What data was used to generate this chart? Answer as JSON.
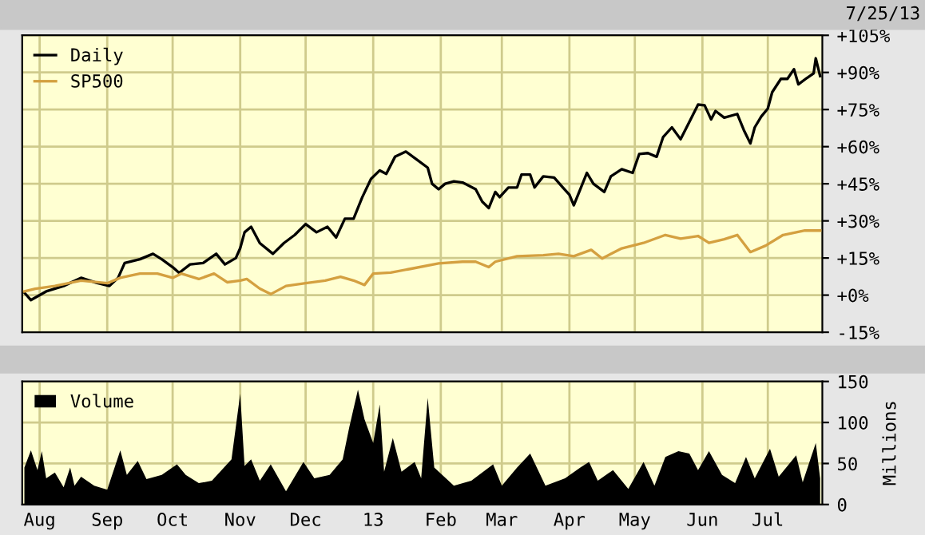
{
  "chart_data": [
    {
      "type": "line",
      "annotations": [
        "7/25/13"
      ],
      "grid": true,
      "legend": "top left",
      "tick_labels": "y",
      "xlim": [
        "2012-07-24",
        "2013-07-26"
      ],
      "xticks": [
        {
          "value": "2012-08-01",
          "label": null
        },
        {
          "value": "2012-09-01",
          "label": null
        },
        {
          "value": "2012-10-01",
          "label": null
        },
        {
          "value": "2012-11-01",
          "label": null
        },
        {
          "value": "2012-12-01",
          "label": null
        },
        {
          "value": "2013-01-01",
          "label": null
        },
        {
          "value": "2013-02-01",
          "label": null
        },
        {
          "value": "2013-03-01",
          "label": null
        },
        {
          "value": "2013-04-01",
          "label": null
        },
        {
          "value": "2013-05-01",
          "label": null
        },
        {
          "value": "2013-06-01",
          "label": null
        },
        {
          "value": "2013-07-01",
          "label": null
        }
      ],
      "ylim": [
        -15,
        105
      ],
      "yticks": [
        {
          "value": -15,
          "label": "-15%"
        },
        {
          "value": 0,
          "label": "+0%"
        },
        {
          "value": 15,
          "label": "+15%"
        },
        {
          "value": 30,
          "label": "+30%"
        },
        {
          "value": 45,
          "label": "+45%"
        },
        {
          "value": 60,
          "label": "+60%"
        },
        {
          "value": 75,
          "label": "+75%"
        },
        {
          "value": 90,
          "label": "+90%"
        },
        {
          "value": 105,
          "label": "+105%"
        }
      ],
      "series": [
        {
          "name": "Daily",
          "color": "#000000",
          "x": [
            "2012-07-25",
            "2012-07-28",
            "2012-08-04",
            "2012-08-12",
            "2012-08-20",
            "2012-08-27",
            "2012-09-02",
            "2012-09-06",
            "2012-09-09",
            "2012-09-16",
            "2012-09-22",
            "2012-09-26",
            "2012-10-01",
            "2012-10-04",
            "2012-10-09",
            "2012-10-15",
            "2012-10-21",
            "2012-10-25",
            "2012-10-30",
            "2012-11-01",
            "2012-11-03",
            "2012-11-06",
            "2012-11-10",
            "2012-11-16",
            "2012-11-21",
            "2012-11-26",
            "2012-12-01",
            "2012-12-06",
            "2012-12-11",
            "2012-12-15",
            "2012-12-19",
            "2012-12-23",
            "2012-12-27",
            "2012-12-31",
            "2013-01-04",
            "2013-01-07",
            "2013-01-11",
            "2013-01-16",
            "2013-01-21",
            "2013-01-26",
            "2013-01-28",
            "2013-01-31",
            "2013-02-03",
            "2013-02-07",
            "2013-02-11",
            "2013-02-17",
            "2013-02-20",
            "2013-02-23",
            "2013-02-26",
            "2013-02-28",
            "2013-03-04",
            "2013-03-08",
            "2013-03-10",
            "2013-03-14",
            "2013-03-16",
            "2013-03-20",
            "2013-03-25",
            "2013-03-29",
            "2013-04-01",
            "2013-04-03",
            "2013-04-06",
            "2013-04-09",
            "2013-04-12",
            "2013-04-17",
            "2013-04-20",
            "2013-04-25",
            "2013-04-30",
            "2013-05-03",
            "2013-05-07",
            "2013-05-11",
            "2013-05-14",
            "2013-05-18",
            "2013-05-22",
            "2013-05-26",
            "2013-05-30",
            "2013-06-02",
            "2013-06-05",
            "2013-06-07",
            "2013-06-11",
            "2013-06-17",
            "2013-06-20",
            "2013-06-23",
            "2013-06-25",
            "2013-06-28",
            "2013-07-01",
            "2013-07-03",
            "2013-07-07",
            "2013-07-10",
            "2013-07-13",
            "2013-07-15",
            "2013-07-19",
            "2013-07-22",
            "2013-07-23",
            "2013-07-25"
          ],
          "values": [
            1,
            -2,
            1.5,
            3.7,
            7,
            5,
            3.7,
            7,
            13,
            14.5,
            16.7,
            14.5,
            11.3,
            9,
            12.4,
            13,
            16.7,
            12.4,
            15,
            19,
            25.4,
            27.6,
            21,
            16.7,
            21,
            24.3,
            28.7,
            25.4,
            27.6,
            23.3,
            30.9,
            30.9,
            39.6,
            47,
            50.4,
            49,
            55.9,
            58,
            54.8,
            51.5,
            45,
            42.8,
            45,
            46,
            45.5,
            42.8,
            37.8,
            35.2,
            41.7,
            39.6,
            43.5,
            43.5,
            48.7,
            48.7,
            43.5,
            48,
            47.5,
            43.5,
            40.6,
            36.3,
            42.8,
            49.4,
            45,
            41.7,
            48,
            50.9,
            49.4,
            57,
            57.4,
            55.9,
            63.9,
            67.8,
            63,
            70,
            77,
            76.7,
            71,
            74.4,
            71.7,
            73.2,
            66.7,
            61.3,
            67.8,
            72.2,
            75.4,
            82,
            87.4,
            87.4,
            91.3,
            85.2,
            87.8,
            89.6,
            95.7,
            88.5
          ]
        },
        {
          "name": "SP500",
          "color": "#d4a040",
          "x": [
            "2012-07-25",
            "2012-07-30",
            "2012-08-08",
            "2012-08-20",
            "2012-09-01",
            "2012-09-07",
            "2012-09-16",
            "2012-09-24",
            "2012-10-01",
            "2012-10-05",
            "2012-10-13",
            "2012-10-20",
            "2012-10-26",
            "2012-11-01",
            "2012-11-04",
            "2012-11-10",
            "2012-11-15",
            "2012-11-22",
            "2012-12-01",
            "2012-12-10",
            "2012-12-17",
            "2012-12-23",
            "2012-12-28",
            "2013-01-01",
            "2013-01-09",
            "2013-01-18",
            "2013-01-31",
            "2013-02-11",
            "2013-02-17",
            "2013-02-23",
            "2013-02-26",
            "2013-03-08",
            "2013-03-20",
            "2013-03-27",
            "2013-04-03",
            "2013-04-11",
            "2013-04-16",
            "2013-04-25",
            "2013-05-05",
            "2013-05-15",
            "2013-05-22",
            "2013-05-30",
            "2013-06-04",
            "2013-06-11",
            "2013-06-17",
            "2013-06-23",
            "2013-06-30",
            "2013-07-08",
            "2013-07-18",
            "2013-07-25"
          ],
          "values": [
            1.5,
            2.6,
            3.7,
            5.9,
            4.8,
            7,
            8.7,
            8.7,
            7,
            8.7,
            6.5,
            8.7,
            5.2,
            5.9,
            6.5,
            2.6,
            0.4,
            3.7,
            4.8,
            5.9,
            7.4,
            5.9,
            4.1,
            8.7,
            9.1,
            10.6,
            12.8,
            13.5,
            13.5,
            11.3,
            13.5,
            15.7,
            16.1,
            16.7,
            15.7,
            18.3,
            14.8,
            18.9,
            21.1,
            24.3,
            22.8,
            23.9,
            21.1,
            22.6,
            24.3,
            17.4,
            20,
            24.3,
            26.1,
            26.1
          ]
        }
      ]
    },
    {
      "type": "area",
      "ylabel": "Millions",
      "grid": true,
      "legend": "top left",
      "xlim": [
        "2012-07-24",
        "2013-07-26"
      ],
      "xticks": [
        {
          "value": "2012-08-01",
          "label": "Aug"
        },
        {
          "value": "2012-09-01",
          "label": "Sep"
        },
        {
          "value": "2012-10-01",
          "label": "Oct"
        },
        {
          "value": "2012-11-01",
          "label": "Nov"
        },
        {
          "value": "2012-12-01",
          "label": "Dec"
        },
        {
          "value": "2013-01-01",
          "label": "13"
        },
        {
          "value": "2013-02-01",
          "label": "Feb"
        },
        {
          "value": "2013-03-01",
          "label": "Mar"
        },
        {
          "value": "2013-04-01",
          "label": "Apr"
        },
        {
          "value": "2013-05-01",
          "label": "May"
        },
        {
          "value": "2013-06-01",
          "label": "Jun"
        },
        {
          "value": "2013-07-01",
          "label": "Jul"
        }
      ],
      "ylim": [
        0,
        150
      ],
      "yticks": [
        0,
        50,
        100,
        150
      ],
      "series": [
        {
          "name": "Volume",
          "color": "#000000",
          "x": [
            "2012-07-25",
            "2012-07-28",
            "2012-07-31",
            "2012-08-02",
            "2012-08-04",
            "2012-08-08",
            "2012-08-12",
            "2012-08-15",
            "2012-08-17",
            "2012-08-20",
            "2012-08-26",
            "2012-09-01",
            "2012-09-07",
            "2012-09-10",
            "2012-09-15",
            "2012-09-19",
            "2012-09-26",
            "2012-10-03",
            "2012-10-07",
            "2012-10-13",
            "2012-10-19",
            "2012-10-28",
            "2012-11-01",
            "2012-11-03",
            "2012-11-06",
            "2012-11-10",
            "2012-11-15",
            "2012-11-22",
            "2012-11-30",
            "2012-12-05",
            "2012-12-12",
            "2012-12-18",
            "2012-12-21",
            "2012-12-25",
            "2012-12-28",
            "2013-01-01",
            "2013-01-04",
            "2013-01-06",
            "2013-01-10",
            "2013-01-14",
            "2013-01-20",
            "2013-01-23",
            "2013-01-26",
            "2013-01-29",
            "2013-02-07",
            "2013-02-15",
            "2013-02-25",
            "2013-03-01",
            "2013-03-08",
            "2013-03-14",
            "2013-03-21",
            "2013-03-30",
            "2013-04-06",
            "2013-04-10",
            "2013-04-14",
            "2013-04-21",
            "2013-04-28",
            "2013-05-05",
            "2013-05-10",
            "2013-05-15",
            "2013-05-21",
            "2013-05-26",
            "2013-05-30",
            "2013-06-04",
            "2013-06-10",
            "2013-06-16",
            "2013-06-21",
            "2013-06-25",
            "2013-07-02",
            "2013-07-06",
            "2013-07-14",
            "2013-07-17",
            "2013-07-23",
            "2013-07-25"
          ],
          "values": [
            45,
            66,
            42,
            65,
            32,
            39,
            21,
            45,
            23,
            34,
            23,
            18,
            66,
            36,
            53,
            31,
            36,
            49,
            36,
            26,
            29,
            55,
            135,
            47,
            55,
            29,
            49,
            16,
            52,
            32,
            36,
            55,
            94,
            140,
            104,
            75,
            122,
            40,
            81,
            40,
            52,
            32,
            130,
            45,
            23,
            29,
            49,
            23,
            45,
            62,
            23,
            32,
            45,
            52,
            29,
            42,
            19,
            52,
            23,
            58,
            65,
            62,
            42,
            65,
            36,
            26,
            58,
            32,
            68,
            34,
            60,
            27,
            75,
            32
          ]
        }
      ]
    }
  ]
}
